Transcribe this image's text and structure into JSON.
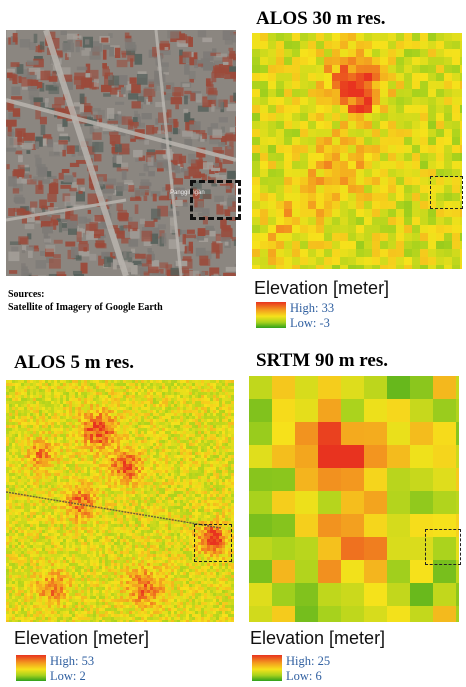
{
  "sources": {
    "line1": "Sources:",
    "line2": "Satellite of Imagery of Google Earth"
  },
  "satellite": {
    "place_label": "Panggilingan",
    "colors": {
      "base": "#8a8580",
      "roof": "#9b4a3a",
      "road": "#b8b4ae",
      "veg": "#55605a"
    }
  },
  "panels": [
    {
      "id": "alos30",
      "title": "ALOS 30 m res.",
      "elevation_label": "Elevation [meter]",
      "high_label": "High: 33",
      "low_label": "Low: -3"
    },
    {
      "id": "alos5",
      "title": "ALOS 5 m res.",
      "elevation_label": "Elevation [meter]",
      "high_label": "High: 53",
      "low_label": "Low: 2"
    },
    {
      "id": "srtm90",
      "title": "SRTM 90 m res.",
      "elevation_label": "Elevation [meter]",
      "high_label": "High: 25",
      "low_label": "Low: 6"
    }
  ],
  "color_ramp": [
    "#2fa11c",
    "#a8d21d",
    "#f6e21b",
    "#f39a1f",
    "#e8331f"
  ]
}
